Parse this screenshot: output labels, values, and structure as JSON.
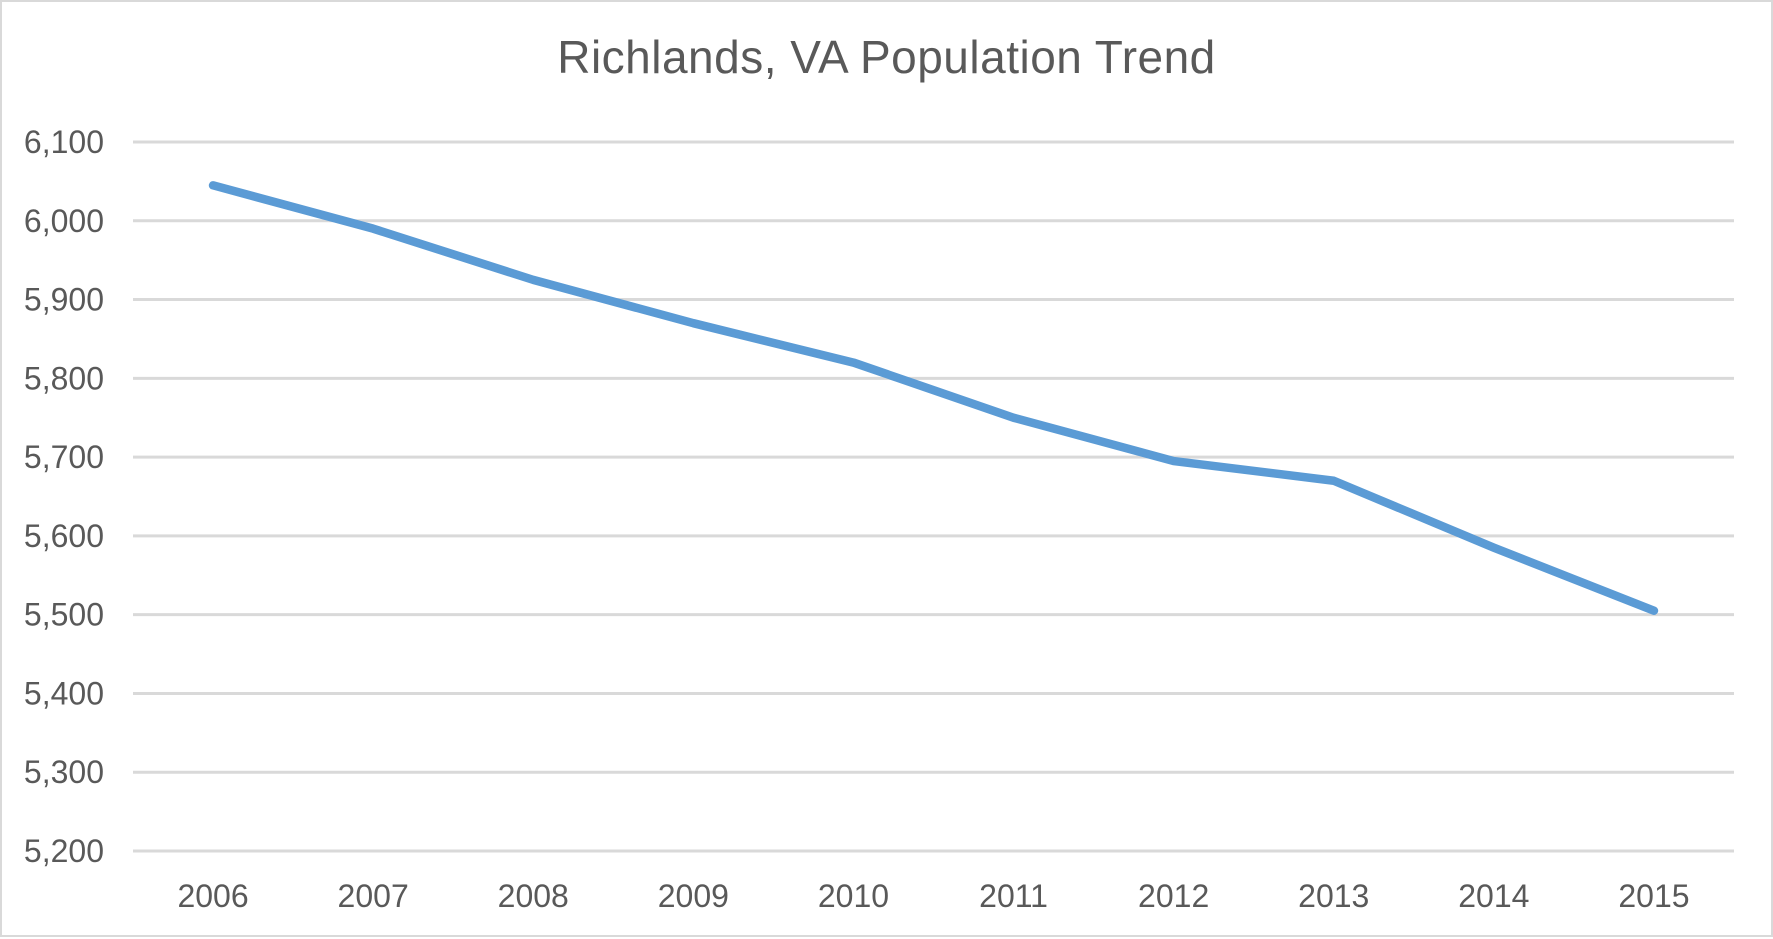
{
  "window": {
    "background_color": "#ffffff",
    "border_color": "#d9d9d9"
  },
  "chart_data": {
    "type": "line",
    "title": "Richlands, VA Population Trend",
    "categories": [
      "2006",
      "2007",
      "2008",
      "2009",
      "2010",
      "2011",
      "2012",
      "2013",
      "2014",
      "2015"
    ],
    "series": [
      {
        "name": "Population",
        "values": [
          6045,
          5990,
          5925,
          5870,
          5820,
          5750,
          5695,
          5670,
          5585,
          5505
        ]
      }
    ],
    "xlabel": "",
    "ylabel": "",
    "ylim": [
      5200,
      6100
    ],
    "ytick_step": 100,
    "y_tick_labels": [
      "6,100",
      "6,000",
      "5,900",
      "5,800",
      "5,700",
      "5,600",
      "5,500",
      "5,400",
      "5,300",
      "5,200"
    ],
    "grid": "horizontal",
    "legend": "none",
    "line_color": "#5b9bd5",
    "gridline_color": "#d9d9d9",
    "text_color": "#595959"
  }
}
